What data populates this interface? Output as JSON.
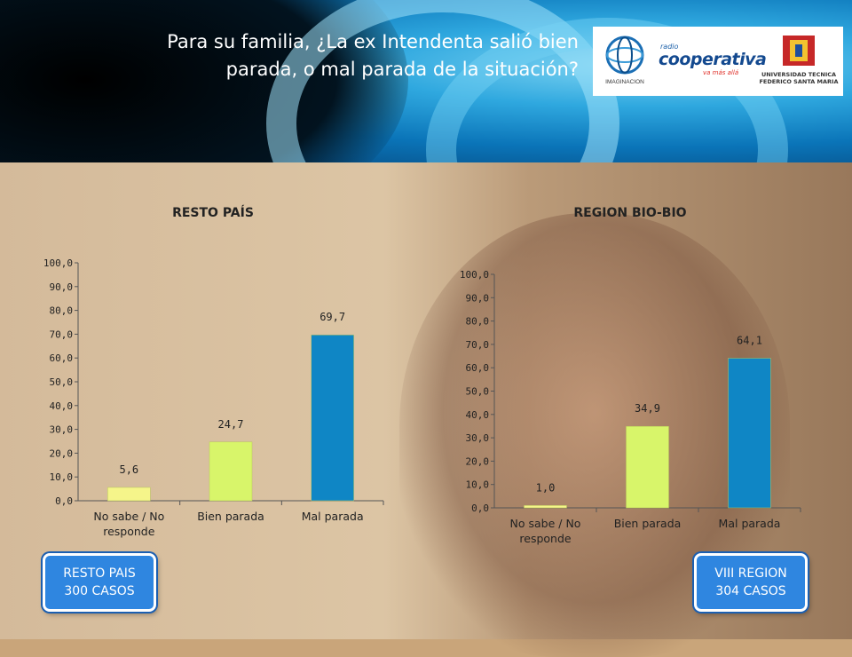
{
  "header": {
    "title": "Para su familia, ¿La ex Intendenta salió bien parada, o mal parada de la situación?"
  },
  "logos": {
    "imaginacion": "IMAGINACION",
    "coop_small": "radio",
    "coop_main": "cooperativa",
    "coop_tag": "va más allá",
    "utfsm_line1": "UNIVERSIDAD TECNICA",
    "utfsm_line2": "FEDERICO SANTA MARIA"
  },
  "badges": {
    "left": {
      "line1": "RESTO PAIS",
      "line2": "300 CASOS"
    },
    "right": {
      "line1": "VIII REGION",
      "line2": "304 CASOS"
    }
  },
  "colors": {
    "no_sabe": "#f5f58a",
    "bien": "#d8f56a",
    "mal": "#0f86c5"
  },
  "chart_data": [
    {
      "type": "bar",
      "title": "RESTO PAÍS",
      "categories": [
        "No sabe / No responde",
        "Bien parada",
        "Mal parada"
      ],
      "category_lines": [
        [
          "No sabe / No",
          "responde"
        ],
        [
          "Bien parada"
        ],
        [
          "Mal parada"
        ]
      ],
      "values": [
        5.6,
        24.7,
        69.7
      ],
      "value_labels": [
        "5,6",
        "24,7",
        "69,7"
      ],
      "ylim": [
        0,
        100
      ],
      "yticks": [
        "0,0",
        "10,0",
        "20,0",
        "30,0",
        "40,0",
        "50,0",
        "60,0",
        "70,0",
        "80,0",
        "90,0",
        "100,0"
      ],
      "grid": false
    },
    {
      "type": "bar",
      "title": "REGION BIO-BIO",
      "categories": [
        "No sabe / No responde",
        "Bien parada",
        "Mal parada"
      ],
      "category_lines": [
        [
          "No sabe / No",
          "responde"
        ],
        [
          "Bien parada"
        ],
        [
          "Mal parada"
        ]
      ],
      "values": [
        1.0,
        34.9,
        64.1
      ],
      "value_labels": [
        "1,0",
        "34,9",
        "64,1"
      ],
      "ylim": [
        0,
        100
      ],
      "yticks": [
        "0,0",
        "10,0",
        "20,0",
        "30,0",
        "40,0",
        "50,0",
        "60,0",
        "70,0",
        "80,0",
        "90,0",
        "100,0"
      ],
      "grid": false
    }
  ]
}
